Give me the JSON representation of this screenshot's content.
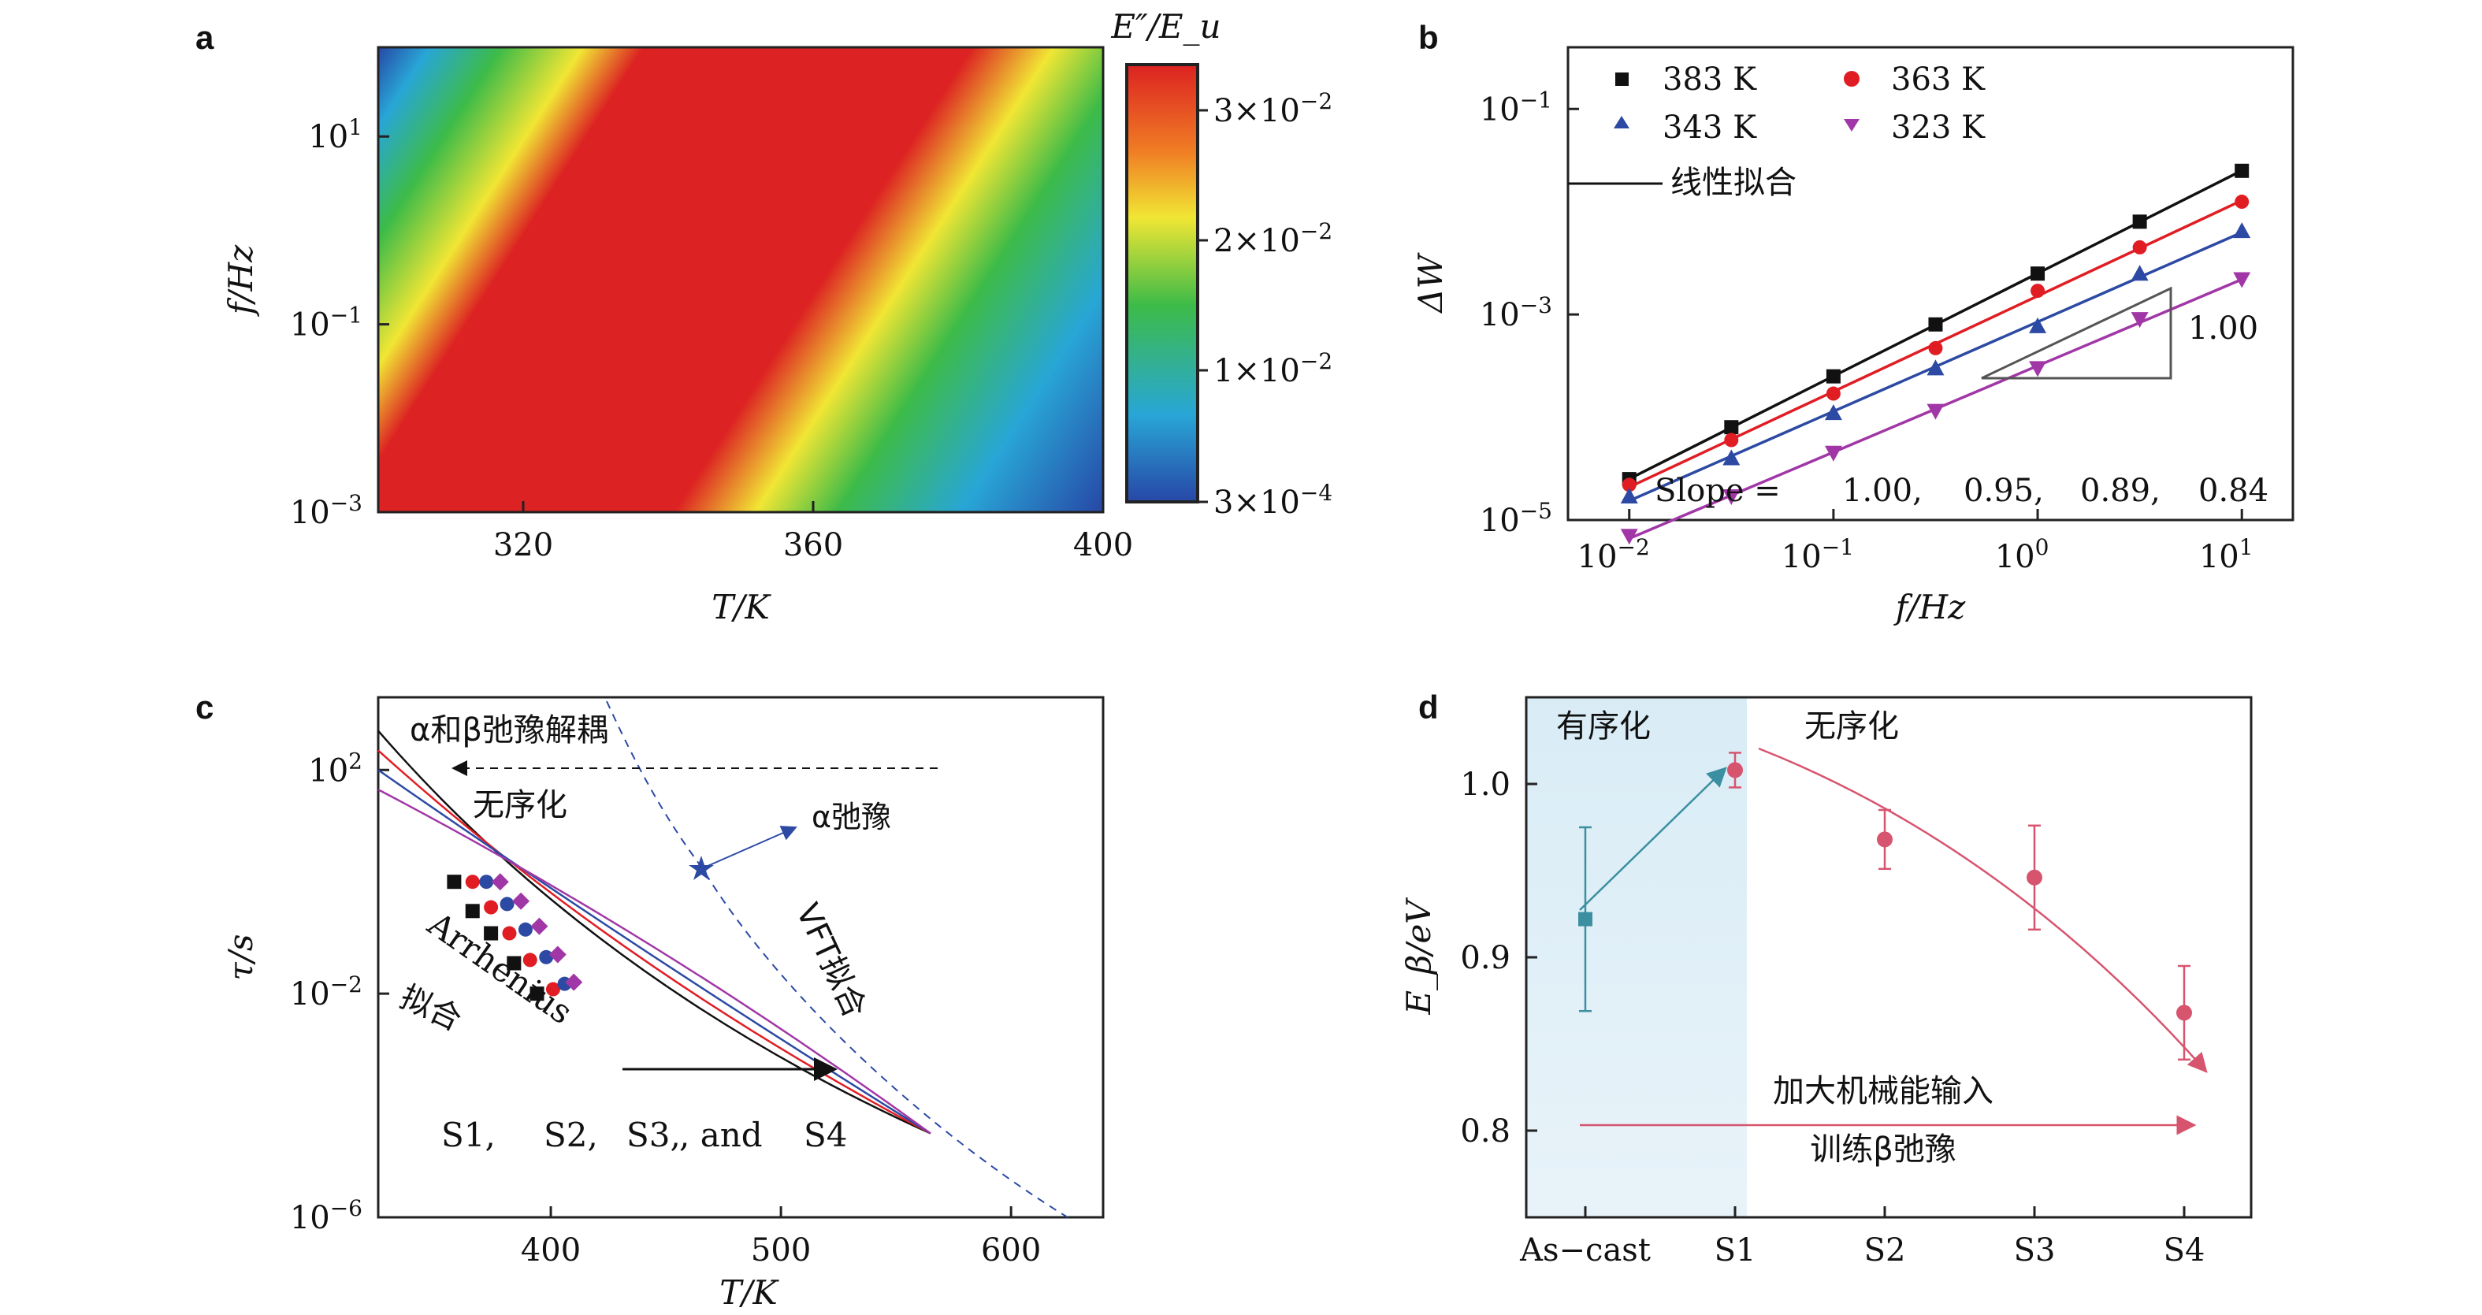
{
  "chart_data": [
    {
      "panel": "a",
      "type": "heatmap",
      "xlabel": "T/K",
      "ylabel": "f/Hz",
      "x_ticks": [
        320,
        360,
        400
      ],
      "xlim": [
        300,
        400
      ],
      "y_ticks": [
        "10^-3",
        "10^-1",
        "10^1"
      ],
      "ylim_log10": [
        -3,
        1.95
      ],
      "colorbar": {
        "label": "E″/E_u",
        "ticks": [
          "3×10^-2",
          "2×10^-2",
          "1×10^-2",
          "3×10^-4"
        ],
        "colormap": [
          "#2747a6",
          "#28a6d6",
          "#3dbb48",
          "#f1e634",
          "#f07e24",
          "#dc2222"
        ]
      }
    },
    {
      "panel": "b",
      "type": "scatter",
      "xlabel": "f/Hz",
      "ylabel": "ΔW",
      "xscale": "log",
      "yscale": "log",
      "x_ticks": [
        "10^-2",
        "10^-1",
        "10^0",
        "10^1"
      ],
      "y_ticks": [
        "10^-5",
        "10^-3",
        "10^-1"
      ],
      "xlim_log10": [
        -2.3,
        1.25
      ],
      "ylim_log10": [
        -5,
        -0.4
      ],
      "x_values": [
        0.01,
        0.03162,
        0.1,
        0.3162,
        1,
        3.162,
        10
      ],
      "series": [
        {
          "name": "383 K",
          "color": "#111111",
          "marker": "square",
          "slope": 1.0,
          "values": [
            2.5e-05,
            8e-05,
            0.00025,
            0.0008,
            0.0025,
            0.008,
            0.025
          ]
        },
        {
          "name": "363 K",
          "color": "#e11d24",
          "marker": "circle",
          "slope": 0.95,
          "values": [
            2.2e-05,
            6e-05,
            0.00017,
            0.00047,
            0.0017,
            0.0045,
            0.0125
          ]
        },
        {
          "name": "343 K",
          "color": "#2c4aa3",
          "marker": "triangle-up",
          "slope": 0.89,
          "values": [
            1.7e-05,
            4e-05,
            0.00011,
            0.0003,
            0.00077,
            0.0025,
            0.0065
          ]
        },
        {
          "name": "323 K",
          "color": "#a137a6",
          "marker": "triangle-down",
          "slope": 0.84,
          "values": [
            7e-06,
            1.7e-05,
            4.5e-05,
            0.000115,
            0.0003,
            0.0009,
            0.0022
          ]
        }
      ],
      "legend_fit_label": "线性拟合",
      "slope_triangle_label": "1.00",
      "slope_text_prefix": "Slope = ",
      "slope_text_values": [
        "1.00,",
        "0.95,",
        "0.89,",
        "0.84"
      ]
    },
    {
      "panel": "c",
      "type": "scatter",
      "xlabel": "T/K",
      "ylabel": "τ/s",
      "yscale": "log",
      "x_ticks": [
        400,
        500,
        600
      ],
      "y_ticks": [
        "10^-6",
        "10^-2",
        "10^2"
      ],
      "xlim": [
        325,
        640
      ],
      "ylim_log10": [
        -6,
        3.3
      ],
      "series": [
        {
          "name": "S1",
          "color": "#111111",
          "points": [
            [
              358,
              1.0
            ],
            [
              366,
              0.3
            ],
            [
              374,
              0.12
            ],
            [
              384,
              0.035
            ],
            [
              394,
              0.01
            ]
          ]
        },
        {
          "name": "S2",
          "color": "#e11d24",
          "points": [
            [
              366,
              1.0
            ],
            [
              374,
              0.35
            ],
            [
              382,
              0.12
            ],
            [
              391,
              0.04
            ],
            [
              401,
              0.012
            ]
          ]
        },
        {
          "name": "S3",
          "color": "#2c4aa3",
          "points": [
            [
              372,
              1.0
            ],
            [
              381,
              0.4
            ],
            [
              389,
              0.14
            ],
            [
              398,
              0.045
            ],
            [
              406,
              0.015
            ]
          ]
        },
        {
          "name": "S4",
          "color": "#a137a6",
          "points": [
            [
              378,
              1.0
            ],
            [
              387,
              0.45
            ],
            [
              395,
              0.16
            ],
            [
              403,
              0.05
            ],
            [
              410,
              0.016
            ]
          ]
        }
      ],
      "annotations": {
        "decoupling": "α和β弛豫解耦",
        "disorder": "无序化",
        "alpha_relaxation": "α弛豫",
        "vft_fit": "VFT拟合",
        "arrhenius": "Arrhenius",
        "fit": "拟合",
        "legend_prefix": "S1,",
        "legend_s2": "S2,",
        "legend_s3": "S3,",
        "legend_and": ", and",
        "legend_s4": "S4"
      }
    },
    {
      "panel": "d",
      "type": "scatter",
      "xlabel": "",
      "ylabel": "E_β/eV",
      "categories": [
        "As−cast",
        "S1",
        "S2",
        "S3",
        "S4"
      ],
      "ylim": [
        0.75,
        1.05
      ],
      "y_ticks": [
        0.8,
        0.9,
        1.0
      ],
      "values": [
        0.922,
        1.008,
        0.968,
        0.946,
        0.868
      ],
      "errors": [
        0.053,
        0.01,
        0.017,
        0.03,
        0.027
      ],
      "colors": [
        "#3b8fa0",
        "#d7546e",
        "#d7546e",
        "#d7546e",
        "#d7546e"
      ],
      "annotations": {
        "ordering": "有序化",
        "disordering": "无序化",
        "mech_input": "加大机械能输入",
        "training": "训练β弛豫"
      }
    }
  ],
  "panel_labels": [
    "a",
    "b",
    "c",
    "d"
  ]
}
